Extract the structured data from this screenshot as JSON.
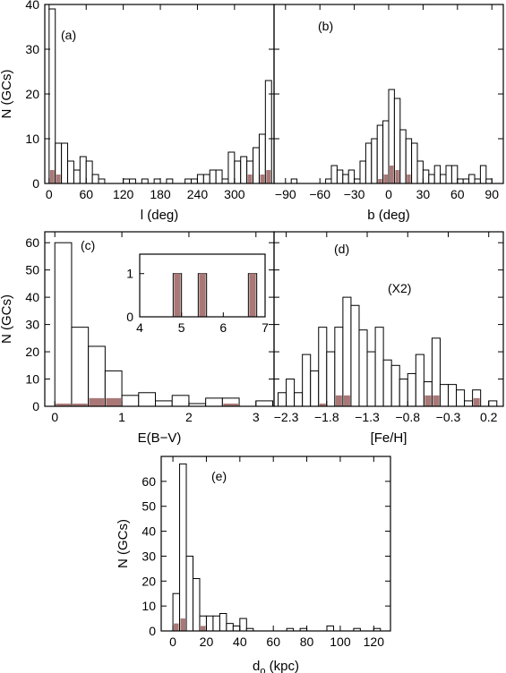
{
  "colors": {
    "bar_fill": "#ffffff",
    "bar_stroke": "#000000",
    "highlight_fill": "#a97876",
    "frame": "#000000"
  },
  "chart_data": [
    {
      "id": "a",
      "panel_label": "(a)",
      "type": "bar",
      "xlabel": "l (deg)",
      "ylabel": "N (GCs)",
      "xlim": [
        -7,
        364
      ],
      "ylim": [
        0,
        40
      ],
      "xticks": [
        0,
        60,
        120,
        180,
        240,
        300
      ],
      "yticks": [
        0,
        10,
        20,
        30,
        40
      ],
      "xticklabels": [
        "0",
        "60",
        "120",
        "180",
        "240",
        "300"
      ],
      "yticklabels": [
        "0",
        "10",
        "20",
        "30",
        "40"
      ],
      "bin_width": 10,
      "bins": [
        {
          "x": 0,
          "n": 39,
          "h": 3
        },
        {
          "x": 10,
          "n": 9,
          "h": 2
        },
        {
          "x": 20,
          "n": 9,
          "h": 0
        },
        {
          "x": 30,
          "n": 5,
          "h": 0
        },
        {
          "x": 40,
          "n": 3,
          "h": 0
        },
        {
          "x": 50,
          "n": 6,
          "h": 0
        },
        {
          "x": 60,
          "n": 5,
          "h": 0
        },
        {
          "x": 70,
          "n": 2,
          "h": 0
        },
        {
          "x": 80,
          "n": 1,
          "h": 0
        },
        {
          "x": 120,
          "n": 1,
          "h": 0
        },
        {
          "x": 130,
          "n": 1,
          "h": 0
        },
        {
          "x": 150,
          "n": 1,
          "h": 0
        },
        {
          "x": 170,
          "n": 1,
          "h": 0
        },
        {
          "x": 190,
          "n": 1,
          "h": 0
        },
        {
          "x": 220,
          "n": 1,
          "h": 0
        },
        {
          "x": 230,
          "n": 1,
          "h": 0
        },
        {
          "x": 240,
          "n": 2,
          "h": 0
        },
        {
          "x": 250,
          "n": 2,
          "h": 0
        },
        {
          "x": 260,
          "n": 3,
          "h": 0
        },
        {
          "x": 270,
          "n": 3,
          "h": 0
        },
        {
          "x": 280,
          "n": 1,
          "h": 0
        },
        {
          "x": 290,
          "n": 7,
          "h": 0
        },
        {
          "x": 300,
          "n": 5,
          "h": 0
        },
        {
          "x": 310,
          "n": 6,
          "h": 0
        },
        {
          "x": 320,
          "n": 5,
          "h": 2
        },
        {
          "x": 330,
          "n": 8,
          "h": 0
        },
        {
          "x": 340,
          "n": 11,
          "h": 2
        },
        {
          "x": 350,
          "n": 23,
          "h": 3
        }
      ]
    },
    {
      "id": "b",
      "panel_label": "(b)",
      "type": "bar",
      "xlabel": "b (deg)",
      "ylabel": "",
      "xlim": [
        -100,
        100
      ],
      "ylim": [
        0,
        40
      ],
      "xticks": [
        -90,
        -60,
        -30,
        0,
        30,
        60,
        90
      ],
      "yticks": [
        0,
        10,
        20,
        30,
        40
      ],
      "xticklabels": [
        "−90",
        "−60",
        "−30",
        "0",
        "30",
        "60",
        "90"
      ],
      "yticklabels": [],
      "bin_width": 5,
      "bins": [
        {
          "x": -85,
          "n": 1,
          "h": 0
        },
        {
          "x": -55,
          "n": 1,
          "h": 0
        },
        {
          "x": -50,
          "n": 4,
          "h": 0
        },
        {
          "x": -45,
          "n": 3,
          "h": 0
        },
        {
          "x": -40,
          "n": 2,
          "h": 0
        },
        {
          "x": -35,
          "n": 3,
          "h": 0
        },
        {
          "x": -30,
          "n": 1,
          "h": 0
        },
        {
          "x": -25,
          "n": 5,
          "h": 0
        },
        {
          "x": -20,
          "n": 9,
          "h": 0
        },
        {
          "x": -15,
          "n": 10,
          "h": 0
        },
        {
          "x": -10,
          "n": 13,
          "h": 1
        },
        {
          "x": -5,
          "n": 14,
          "h": 2
        },
        {
          "x": 0,
          "n": 21,
          "h": 4
        },
        {
          "x": 5,
          "n": 19,
          "h": 3
        },
        {
          "x": 10,
          "n": 12,
          "h": 0
        },
        {
          "x": 15,
          "n": 10,
          "h": 2
        },
        {
          "x": 20,
          "n": 9,
          "h": 0
        },
        {
          "x": 25,
          "n": 5,
          "h": 0
        },
        {
          "x": 30,
          "n": 3,
          "h": 0
        },
        {
          "x": 35,
          "n": 2,
          "h": 0
        },
        {
          "x": 40,
          "n": 4,
          "h": 0
        },
        {
          "x": 45,
          "n": 2,
          "h": 0
        },
        {
          "x": 50,
          "n": 4,
          "h": 0
        },
        {
          "x": 55,
          "n": 4,
          "h": 0
        },
        {
          "x": 60,
          "n": 1,
          "h": 0
        },
        {
          "x": 65,
          "n": 1,
          "h": 0
        },
        {
          "x": 70,
          "n": 2,
          "h": 0
        },
        {
          "x": 75,
          "n": 1,
          "h": 0
        },
        {
          "x": 80,
          "n": 4,
          "h": 0
        },
        {
          "x": 85,
          "n": 1,
          "h": 0
        }
      ]
    },
    {
      "id": "c",
      "panel_label": "(c)",
      "type": "bar",
      "xlabel": "E(B−V)",
      "ylabel": "N (GCs)",
      "xlim": [
        -0.15,
        3.27
      ],
      "ylim": [
        0,
        64
      ],
      "xticks": [
        0,
        1,
        2,
        3
      ],
      "yticks": [
        0,
        10,
        20,
        30,
        40,
        50,
        60
      ],
      "xticklabels": [
        "0",
        "1",
        "2",
        "3"
      ],
      "yticklabels": [
        "0",
        "10",
        "20",
        "30",
        "40",
        "50",
        "60"
      ],
      "bin_width": 0.25,
      "bins": [
        {
          "x": 0,
          "n": 60,
          "h": 1
        },
        {
          "x": 0.25,
          "n": 29,
          "h": 1
        },
        {
          "x": 0.5,
          "n": 22,
          "h": 3
        },
        {
          "x": 0.75,
          "n": 13,
          "h": 3
        },
        {
          "x": 1.0,
          "n": 4,
          "h": 0
        },
        {
          "x": 1.25,
          "n": 5,
          "h": 0
        },
        {
          "x": 1.5,
          "n": 2,
          "h": 0
        },
        {
          "x": 1.75,
          "n": 4,
          "h": 0
        },
        {
          "x": 2.0,
          "n": 1,
          "h": 0
        },
        {
          "x": 2.25,
          "n": 3,
          "h": 0
        },
        {
          "x": 2.5,
          "n": 3,
          "h": 1
        },
        {
          "x": 3.0,
          "n": 2,
          "h": 0
        }
      ],
      "inset": {
        "xlim": [
          4,
          7
        ],
        "ylim": [
          0,
          1.45
        ],
        "xticks": [
          4,
          5,
          6,
          7
        ],
        "yticks": [
          0,
          1
        ],
        "xticklabels": [
          "4",
          "5",
          "6",
          "7"
        ],
        "yticklabels": [
          "0",
          "1"
        ],
        "bin_width": 0.2,
        "bins": [
          {
            "x": 4.8,
            "n": 1,
            "h": 1
          },
          {
            "x": 5.4,
            "n": 1,
            "h": 1
          },
          {
            "x": 6.6,
            "n": 1,
            "h": 1
          }
        ]
      }
    },
    {
      "id": "d",
      "panel_label": "(d)",
      "annotation": "(X2)",
      "type": "bar",
      "xlabel": "[Fe/H]",
      "ylabel": "",
      "xlim": [
        -2.45,
        0.38
      ],
      "ylim": [
        0,
        64
      ],
      "xticks": [
        -2.3,
        -1.8,
        -1.3,
        -0.8,
        -0.3,
        0.2
      ],
      "yticks": [
        0,
        10,
        20,
        30,
        40,
        50,
        60
      ],
      "xticklabels": [
        "−2.3",
        "−1.8",
        "−1.3",
        "−0.8",
        "−0.3",
        "0.2"
      ],
      "yticklabels": [],
      "bin_width": 0.1,
      "bins": [
        {
          "x": -2.4,
          "n": 5,
          "h": 0
        },
        {
          "x": -2.3,
          "n": 10,
          "h": 0
        },
        {
          "x": -2.2,
          "n": 5,
          "h": 0
        },
        {
          "x": -2.1,
          "n": 19,
          "h": 0
        },
        {
          "x": -2.0,
          "n": 13,
          "h": 0
        },
        {
          "x": -1.9,
          "n": 29,
          "h": 1
        },
        {
          "x": -1.8,
          "n": 20,
          "h": 0
        },
        {
          "x": -1.7,
          "n": 29,
          "h": 4
        },
        {
          "x": -1.6,
          "n": 40,
          "h": 4
        },
        {
          "x": -1.5,
          "n": 37,
          "h": 0
        },
        {
          "x": -1.4,
          "n": 28,
          "h": 0
        },
        {
          "x": -1.3,
          "n": 20,
          "h": 0
        },
        {
          "x": -1.2,
          "n": 29,
          "h": 0
        },
        {
          "x": -1.1,
          "n": 17,
          "h": 0
        },
        {
          "x": -1.0,
          "n": 15,
          "h": 0
        },
        {
          "x": -0.9,
          "n": 10,
          "h": 0
        },
        {
          "x": -0.8,
          "n": 12,
          "h": 0
        },
        {
          "x": -0.7,
          "n": 19,
          "h": 0
        },
        {
          "x": -0.6,
          "n": 9,
          "h": 4
        },
        {
          "x": -0.5,
          "n": 25,
          "h": 4
        },
        {
          "x": -0.4,
          "n": 8,
          "h": 0
        },
        {
          "x": -0.3,
          "n": 8,
          "h": 0
        },
        {
          "x": -0.2,
          "n": 6,
          "h": 0
        },
        {
          "x": -0.1,
          "n": 2,
          "h": 0
        },
        {
          "x": 0.0,
          "n": 6,
          "h": 3
        },
        {
          "x": 0.2,
          "n": 2,
          "h": 0
        }
      ]
    },
    {
      "id": "e",
      "panel_label": "(e)",
      "type": "bar",
      "xlabel": "d",
      "xlabel_sub": "o",
      "xlabel_suffix": " (kpc)",
      "ylabel": "N (GCs)",
      "xlim": [
        -7,
        130
      ],
      "ylim": [
        0,
        70
      ],
      "xticks": [
        0,
        20,
        40,
        60,
        80,
        100,
        120
      ],
      "yticks": [
        0,
        10,
        20,
        30,
        40,
        50,
        60
      ],
      "xticklabels": [
        "0",
        "20",
        "40",
        "60",
        "80",
        "100",
        "120"
      ],
      "yticklabels": [
        "0",
        "10",
        "20",
        "30",
        "40",
        "50",
        "60"
      ],
      "bin_width": 4,
      "bins": [
        {
          "x": 0,
          "n": 15,
          "h": 3
        },
        {
          "x": 4,
          "n": 67,
          "h": 5
        },
        {
          "x": 8,
          "n": 30,
          "h": 0
        },
        {
          "x": 12,
          "n": 21,
          "h": 0
        },
        {
          "x": 16,
          "n": 6,
          "h": 2
        },
        {
          "x": 20,
          "n": 6,
          "h": 0
        },
        {
          "x": 24,
          "n": 6,
          "h": 0
        },
        {
          "x": 28,
          "n": 7,
          "h": 0
        },
        {
          "x": 32,
          "n": 3,
          "h": 0
        },
        {
          "x": 36,
          "n": 2,
          "h": 0
        },
        {
          "x": 40,
          "n": 5,
          "h": 0
        },
        {
          "x": 44,
          "n": 1,
          "h": 0
        },
        {
          "x": 68,
          "n": 1,
          "h": 0
        },
        {
          "x": 76,
          "n": 1,
          "h": 0
        },
        {
          "x": 92,
          "n": 2,
          "h": 0
        },
        {
          "x": 108,
          "n": 1,
          "h": 0
        },
        {
          "x": 120,
          "n": 1,
          "h": 0
        }
      ]
    }
  ]
}
